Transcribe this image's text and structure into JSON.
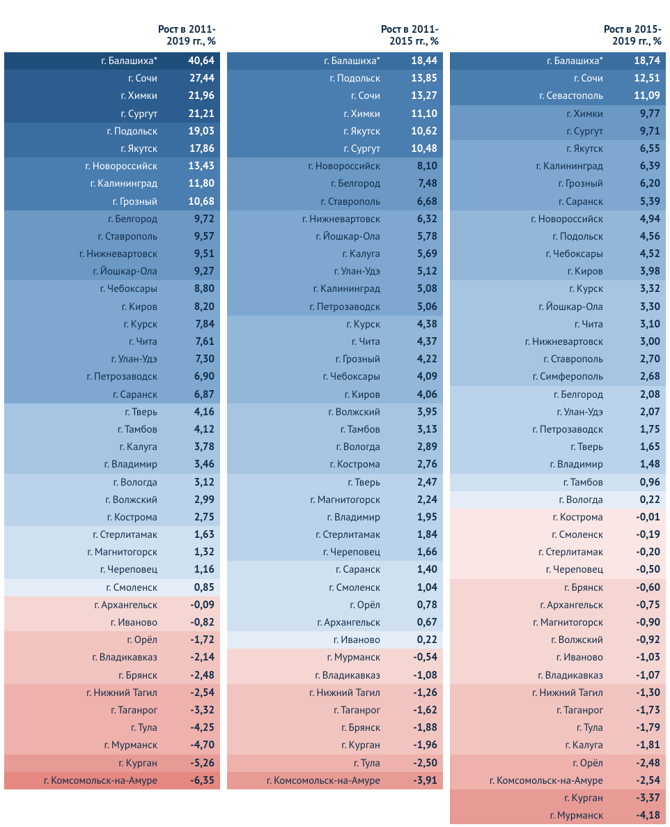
{
  "text_color_dark": "#0f2b46",
  "text_color_light": "#ffffff",
  "columns": [
    {
      "header": "Рост в 2011-2019 гг., %",
      "rows": [
        {
          "city": "г. Балашиха*",
          "value": "40,64",
          "bg": "#204e7b",
          "inverse": true
        },
        {
          "city": "г. Сочи",
          "value": "27,44",
          "bg": "#2c5d8e",
          "inverse": true
        },
        {
          "city": "г. Химки",
          "value": "21,96",
          "bg": "#2c5d8e",
          "inverse": true
        },
        {
          "city": "г. Сургут",
          "value": "21,21",
          "bg": "#2c5d8e",
          "inverse": true
        },
        {
          "city": "г. Подольск",
          "value": "19,03",
          "bg": "#3b6ea0",
          "inverse": true
        },
        {
          "city": "г. Якутск",
          "value": "17,86",
          "bg": "#3b6ea0",
          "inverse": true
        },
        {
          "city": "г. Новороссийск",
          "value": "13,43",
          "bg": "#4a7db0",
          "inverse": true
        },
        {
          "city": "г. Калининград",
          "value": "11,80",
          "bg": "#4a7db0",
          "inverse": true
        },
        {
          "city": "г. Грозный",
          "value": "10,68",
          "bg": "#4a7db0",
          "inverse": true
        },
        {
          "city": "г. Белгород",
          "value": "9,72",
          "bg": "#6b99c4",
          "inverse": false
        },
        {
          "city": "г. Ставрополь",
          "value": "9,57",
          "bg": "#6b99c4",
          "inverse": false
        },
        {
          "city": "г. Нижневартовск",
          "value": "9,51",
          "bg": "#6b99c4",
          "inverse": false
        },
        {
          "city": "г. Йошкар-Ола",
          "value": "9,27",
          "bg": "#6b99c4",
          "inverse": false
        },
        {
          "city": "г. Чебоксары",
          "value": "8,80",
          "bg": "#7ea8cf",
          "inverse": false
        },
        {
          "city": "г. Киров",
          "value": "8,20",
          "bg": "#7ea8cf",
          "inverse": false
        },
        {
          "city": "г. Курск",
          "value": "7,84",
          "bg": "#7ea8cf",
          "inverse": false
        },
        {
          "city": "г. Чита",
          "value": "7,61",
          "bg": "#7ea8cf",
          "inverse": false
        },
        {
          "city": "г. Улан-Удэ",
          "value": "7,30",
          "bg": "#7ea8cf",
          "inverse": false
        },
        {
          "city": "г. Петрозаводск",
          "value": "6,90",
          "bg": "#7ea8cf",
          "inverse": false
        },
        {
          "city": "г. Саранск",
          "value": "6,87",
          "bg": "#7ea8cf",
          "inverse": false
        },
        {
          "city": "г. Тверь",
          "value": "4,16",
          "bg": "#a6c5e2",
          "inverse": false
        },
        {
          "city": "г. Тамбов",
          "value": "4,12",
          "bg": "#a6c5e2",
          "inverse": false
        },
        {
          "city": "г. Калуга",
          "value": "3,78",
          "bg": "#a6c5e2",
          "inverse": false
        },
        {
          "city": "г. Владимир",
          "value": "3,46",
          "bg": "#a6c5e2",
          "inverse": false
        },
        {
          "city": "г. Вологда",
          "value": "3,12",
          "bg": "#bbd3ea",
          "inverse": false
        },
        {
          "city": "г. Волжский",
          "value": "2,99",
          "bg": "#bbd3ea",
          "inverse": false
        },
        {
          "city": "г. Кострома",
          "value": "2,75",
          "bg": "#bbd3ea",
          "inverse": false
        },
        {
          "city": "г. Стерлитамак",
          "value": "1,63",
          "bg": "#cfe0f1",
          "inverse": false
        },
        {
          "city": "г. Магнитогорск",
          "value": "1,32",
          "bg": "#cfe0f1",
          "inverse": false
        },
        {
          "city": "г. Череповец",
          "value": "1,16",
          "bg": "#cfe0f1",
          "inverse": false
        },
        {
          "city": "г. Смоленск",
          "value": "0,85",
          "bg": "#e4edf7",
          "inverse": false
        },
        {
          "city": "г. Архангельск",
          "value": "-0,09",
          "bg": "#f6d6d3",
          "inverse": false
        },
        {
          "city": "г. Иваново",
          "value": "-0,82",
          "bg": "#f6d6d3",
          "inverse": false
        },
        {
          "city": "г. Орёл",
          "value": "-1,72",
          "bg": "#f2c4c0",
          "inverse": false
        },
        {
          "city": "г. Владикавказ",
          "value": "-2,14",
          "bg": "#f2c4c0",
          "inverse": false
        },
        {
          "city": "г. Брянск",
          "value": "-2,48",
          "bg": "#f2c4c0",
          "inverse": false
        },
        {
          "city": "г. Нижний Тагил",
          "value": "-2,54",
          "bg": "#eeb1ac",
          "inverse": false
        },
        {
          "city": "г. Таганрог",
          "value": "-3,32",
          "bg": "#eeb1ac",
          "inverse": false
        },
        {
          "city": "г. Тула",
          "value": "-4,25",
          "bg": "#eeb1ac",
          "inverse": false
        },
        {
          "city": "г. Мурманск",
          "value": "-4,70",
          "bg": "#eeb1ac",
          "inverse": false
        },
        {
          "city": "г. Курган",
          "value": "-5,26",
          "bg": "#e89b95",
          "inverse": false
        },
        {
          "city": "г. Комсомольск-на-Амуре",
          "value": "-6,35",
          "bg": "#e58880",
          "inverse": false
        }
      ]
    },
    {
      "header": "Рост в 2011-2015 гг., %",
      "rows": [
        {
          "city": "г. Балашиха*",
          "value": "18,44",
          "bg": "#3b6ea0",
          "inverse": true
        },
        {
          "city": "г. Подольск",
          "value": "13,85",
          "bg": "#4a7db0",
          "inverse": true
        },
        {
          "city": "г. Сочи",
          "value": "13,27",
          "bg": "#4a7db0",
          "inverse": true
        },
        {
          "city": "г. Химки",
          "value": "11,10",
          "bg": "#4a7db0",
          "inverse": true
        },
        {
          "city": "г. Якутск",
          "value": "10,62",
          "bg": "#4a7db0",
          "inverse": true
        },
        {
          "city": "г. Сургут",
          "value": "10,48",
          "bg": "#4a7db0",
          "inverse": true
        },
        {
          "city": "г. Новороссийск",
          "value": "8,10",
          "bg": "#6b99c4",
          "inverse": false
        },
        {
          "city": "г. Белгород",
          "value": "7,48",
          "bg": "#6b99c4",
          "inverse": false
        },
        {
          "city": "г. Ставрополь",
          "value": "6,68",
          "bg": "#6b99c4",
          "inverse": false
        },
        {
          "city": "г. Нижневартовск",
          "value": "6,32",
          "bg": "#7ea8cf",
          "inverse": false
        },
        {
          "city": "г. Йошкар-Ола",
          "value": "5,78",
          "bg": "#7ea8cf",
          "inverse": false
        },
        {
          "city": "г. Калуга",
          "value": "5,69",
          "bg": "#7ea8cf",
          "inverse": false
        },
        {
          "city": "г. Улан-Удэ",
          "value": "5,12",
          "bg": "#7ea8cf",
          "inverse": false
        },
        {
          "city": "г. Калининград",
          "value": "5,08",
          "bg": "#7ea8cf",
          "inverse": false
        },
        {
          "city": "г. Петрозаводск",
          "value": "5,06",
          "bg": "#7ea8cf",
          "inverse": false
        },
        {
          "city": "г. Курск",
          "value": "4,38",
          "bg": "#93b7d9",
          "inverse": false
        },
        {
          "city": "г. Чита",
          "value": "4,37",
          "bg": "#93b7d9",
          "inverse": false
        },
        {
          "city": "г. Грозный",
          "value": "4,22",
          "bg": "#93b7d9",
          "inverse": false
        },
        {
          "city": "г. Чебоксары",
          "value": "4,09",
          "bg": "#93b7d9",
          "inverse": false
        },
        {
          "city": "г. Киров",
          "value": "4,06",
          "bg": "#93b7d9",
          "inverse": false
        },
        {
          "city": "г. Волжский",
          "value": "3,95",
          "bg": "#a6c5e2",
          "inverse": false
        },
        {
          "city": "г. Тамбов",
          "value": "3,13",
          "bg": "#a6c5e2",
          "inverse": false
        },
        {
          "city": "г. Вологда",
          "value": "2,89",
          "bg": "#a6c5e2",
          "inverse": false
        },
        {
          "city": "г. Кострома",
          "value": "2,76",
          "bg": "#a6c5e2",
          "inverse": false
        },
        {
          "city": "г. Тверь",
          "value": "2,47",
          "bg": "#bbd3ea",
          "inverse": false
        },
        {
          "city": "г. Магнитогорск",
          "value": "2,24",
          "bg": "#bbd3ea",
          "inverse": false
        },
        {
          "city": "г. Владимир",
          "value": "1,95",
          "bg": "#bbd3ea",
          "inverse": false
        },
        {
          "city": "г. Стерлитамак",
          "value": "1,84",
          "bg": "#bbd3ea",
          "inverse": false
        },
        {
          "city": "г. Череповец",
          "value": "1,66",
          "bg": "#bbd3ea",
          "inverse": false
        },
        {
          "city": "г. Саранск",
          "value": "1,40",
          "bg": "#cfe0f1",
          "inverse": false
        },
        {
          "city": "г. Смоленск",
          "value": "1,04",
          "bg": "#cfe0f1",
          "inverse": false
        },
        {
          "city": "г. Орёл",
          "value": "0,78",
          "bg": "#cfe0f1",
          "inverse": false
        },
        {
          "city": "г. Архангельск",
          "value": "0,67",
          "bg": "#cfe0f1",
          "inverse": false
        },
        {
          "city": "г. Иваново",
          "value": "0,22",
          "bg": "#e4edf7",
          "inverse": false
        },
        {
          "city": "г. Мурманск",
          "value": "-0,54",
          "bg": "#f6d6d3",
          "inverse": false
        },
        {
          "city": "г. Владикавказ",
          "value": "-1,08",
          "bg": "#f6d6d3",
          "inverse": false
        },
        {
          "city": "г. Нижний Тагил",
          "value": "-1,26",
          "bg": "#f2c4c0",
          "inverse": false
        },
        {
          "city": "г. Таганрог",
          "value": "-1,62",
          "bg": "#f2c4c0",
          "inverse": false
        },
        {
          "city": "г. Брянск",
          "value": "-1,88",
          "bg": "#f2c4c0",
          "inverse": false
        },
        {
          "city": "г. Курган",
          "value": "-1,96",
          "bg": "#f2c4c0",
          "inverse": false
        },
        {
          "city": "г. Тула",
          "value": "-2,50",
          "bg": "#eeb1ac",
          "inverse": false
        },
        {
          "city": "г. Комсомольск-на-Амуре",
          "value": "-3,91",
          "bg": "#e89b95",
          "inverse": false
        }
      ]
    },
    {
      "header": "Рост в 2015-2019 гг., %",
      "rows": [
        {
          "city": "г. Балашиха*",
          "value": "18,74",
          "bg": "#3b6ea0",
          "inverse": true
        },
        {
          "city": "г. Сочи",
          "value": "12,51",
          "bg": "#4a7db0",
          "inverse": true
        },
        {
          "city": "г. Севастополь",
          "value": "11,09",
          "bg": "#4a7db0",
          "inverse": true
        },
        {
          "city": "г. Химки",
          "value": "9,77",
          "bg": "#6b99c4",
          "inverse": false
        },
        {
          "city": "г. Сургут",
          "value": "9,71",
          "bg": "#6b99c4",
          "inverse": false
        },
        {
          "city": "г. Якутск",
          "value": "6,55",
          "bg": "#7ea8cf",
          "inverse": false
        },
        {
          "city": "г. Калининград",
          "value": "6,39",
          "bg": "#7ea8cf",
          "inverse": false
        },
        {
          "city": "г. Грозный",
          "value": "6,20",
          "bg": "#7ea8cf",
          "inverse": false
        },
        {
          "city": "г. Саранск",
          "value": "5,39",
          "bg": "#7ea8cf",
          "inverse": false
        },
        {
          "city": "г. Новороссийск",
          "value": "4,94",
          "bg": "#93b7d9",
          "inverse": false
        },
        {
          "city": "г. Подольск",
          "value": "4,56",
          "bg": "#93b7d9",
          "inverse": false
        },
        {
          "city": "г. Чебоксары",
          "value": "4,52",
          "bg": "#93b7d9",
          "inverse": false
        },
        {
          "city": "г. Киров",
          "value": "3,98",
          "bg": "#93b7d9",
          "inverse": false
        },
        {
          "city": "г. Курск",
          "value": "3,32",
          "bg": "#a6c5e2",
          "inverse": false
        },
        {
          "city": "г. Йошкар-Ола",
          "value": "3,30",
          "bg": "#a6c5e2",
          "inverse": false
        },
        {
          "city": "г. Чита",
          "value": "3,10",
          "bg": "#a6c5e2",
          "inverse": false
        },
        {
          "city": "г. Нижневартовск",
          "value": "3,00",
          "bg": "#a6c5e2",
          "inverse": false
        },
        {
          "city": "г. Ставрополь",
          "value": "2,70",
          "bg": "#a6c5e2",
          "inverse": false
        },
        {
          "city": "г. Симферополь",
          "value": "2,68",
          "bg": "#a6c5e2",
          "inverse": false
        },
        {
          "city": "г. Белгород",
          "value": "2,08",
          "bg": "#bbd3ea",
          "inverse": false
        },
        {
          "city": "г. Улан-Удэ",
          "value": "2,07",
          "bg": "#bbd3ea",
          "inverse": false
        },
        {
          "city": "г. Петрозаводск",
          "value": "1,75",
          "bg": "#bbd3ea",
          "inverse": false
        },
        {
          "city": "г. Тверь",
          "value": "1,65",
          "bg": "#bbd3ea",
          "inverse": false
        },
        {
          "city": "г. Владимир",
          "value": "1,48",
          "bg": "#bbd3ea",
          "inverse": false
        },
        {
          "city": "г. Тамбов",
          "value": "0,96",
          "bg": "#cfe0f1",
          "inverse": false
        },
        {
          "city": "г. Вологда",
          "value": "0,22",
          "bg": "#e4edf7",
          "inverse": false
        },
        {
          "city": "г. Кострома",
          "value": "-0,01",
          "bg": "#fae6e4",
          "inverse": false
        },
        {
          "city": "г. Смоленск",
          "value": "-0,19",
          "bg": "#fae6e4",
          "inverse": false
        },
        {
          "city": "г. Стерлитамак",
          "value": "-0,20",
          "bg": "#fae6e4",
          "inverse": false
        },
        {
          "city": "г. Череповец",
          "value": "-0,50",
          "bg": "#fae6e4",
          "inverse": false
        },
        {
          "city": "г. Брянск",
          "value": "-0,60",
          "bg": "#f6d6d3",
          "inverse": false
        },
        {
          "city": "г. Архангельск",
          "value": "-0,75",
          "bg": "#f6d6d3",
          "inverse": false
        },
        {
          "city": "г. Магнитогорск",
          "value": "-0,90",
          "bg": "#f6d6d3",
          "inverse": false
        },
        {
          "city": "г. Волжский",
          "value": "-0,92",
          "bg": "#f6d6d3",
          "inverse": false
        },
        {
          "city": "г. Иваново",
          "value": "-1,03",
          "bg": "#f6d6d3",
          "inverse": false
        },
        {
          "city": "г. Владикавказ",
          "value": "-1,07",
          "bg": "#f6d6d3",
          "inverse": false
        },
        {
          "city": "г. Нижний Тагил",
          "value": "-1,30",
          "bg": "#f2c4c0",
          "inverse": false
        },
        {
          "city": "г. Таганрог",
          "value": "-1,73",
          "bg": "#f2c4c0",
          "inverse": false
        },
        {
          "city": "г. Тула",
          "value": "-1,79",
          "bg": "#f2c4c0",
          "inverse": false
        },
        {
          "city": "г. Калуга",
          "value": "-1,81",
          "bg": "#f2c4c0",
          "inverse": false
        },
        {
          "city": "г. Орёл",
          "value": "-2,48",
          "bg": "#eeb1ac",
          "inverse": false
        },
        {
          "city": "г. Комсомольск-на-Амуре",
          "value": "-2,54",
          "bg": "#eeb1ac",
          "inverse": false
        },
        {
          "city": "г. Курган",
          "value": "-3,37",
          "bg": "#e89b95",
          "inverse": false
        },
        {
          "city": "г. Мурманск",
          "value": "-4,18",
          "bg": "#e89b95",
          "inverse": false
        }
      ]
    }
  ]
}
